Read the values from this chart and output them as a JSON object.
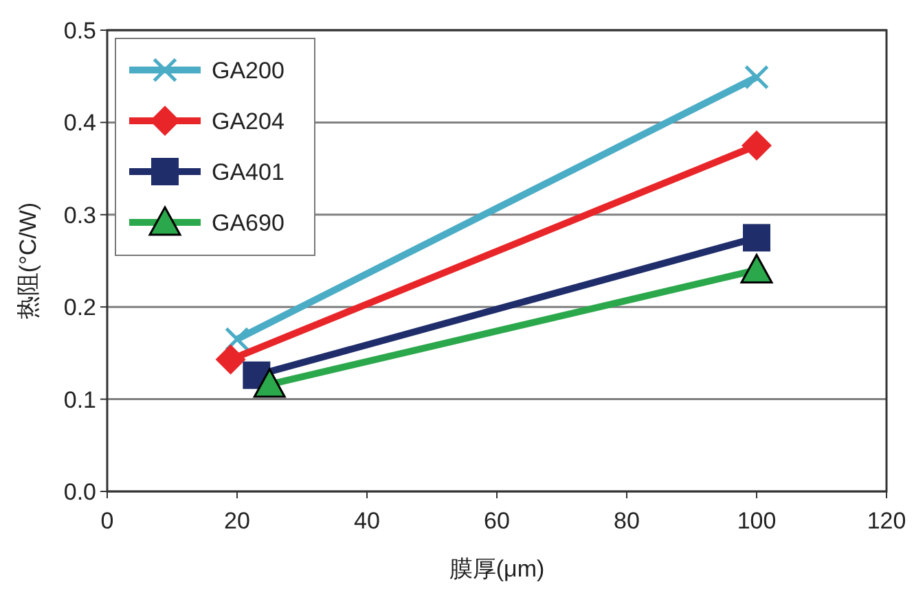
{
  "chart_data": {
    "type": "line",
    "xlabel": "膜厚(μm)",
    "ylabel": "热阻(°C/W)",
    "xlim": [
      0,
      120
    ],
    "xticks": [
      0,
      20,
      40,
      60,
      80,
      100,
      120
    ],
    "ylim": [
      0,
      0.5
    ],
    "yticks": [
      {
        "value": 0,
        "label": "0.0"
      },
      0.1,
      0.2,
      0.3,
      0.4,
      0.5
    ],
    "grid": "y",
    "legend": "top left",
    "series": [
      {
        "name": "GA200",
        "color": "#4bacc6",
        "marker": "cross",
        "x": [
          20,
          100
        ],
        "values": [
          0.165,
          0.449
        ]
      },
      {
        "name": "GA204",
        "color": "#e8262a",
        "marker": "diamond",
        "x": [
          19,
          100
        ],
        "values": [
          0.143,
          0.375
        ]
      },
      {
        "name": "GA401",
        "color": "#1f2d6b",
        "marker": "square",
        "x": [
          23,
          100
        ],
        "values": [
          0.126,
          0.275
        ]
      },
      {
        "name": "GA690",
        "color": "#2ca84c",
        "marker": "triangle",
        "x": [
          25,
          100
        ],
        "values": [
          0.116,
          0.24
        ]
      }
    ]
  }
}
